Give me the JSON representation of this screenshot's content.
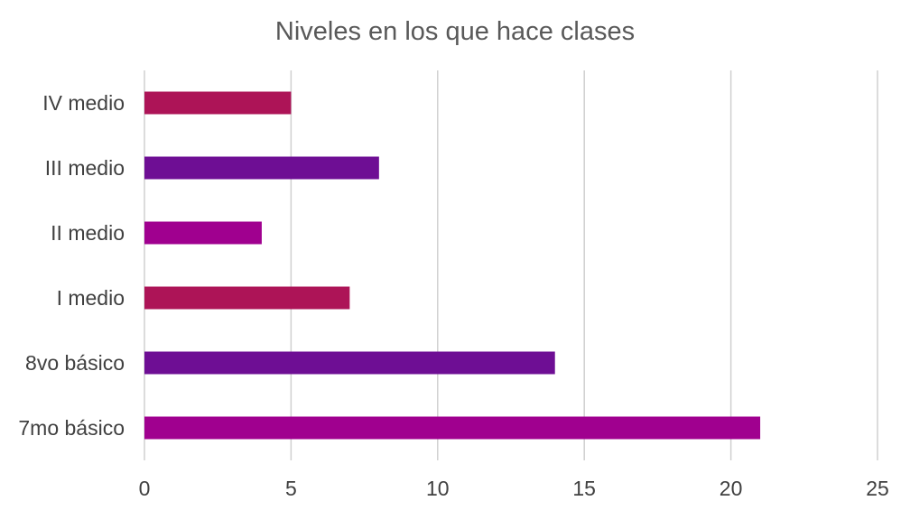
{
  "chart_data": {
    "type": "bar",
    "orientation": "horizontal",
    "title": "Niveles en los que hace clases",
    "xlabel": "",
    "ylabel": "",
    "categories": [
      "7mo básico",
      "8vo básico",
      "I medio",
      "II medio",
      "III medio",
      "IV medio"
    ],
    "values": [
      21,
      14,
      7,
      4,
      8,
      5
    ],
    "bar_colors": [
      "#a0008f",
      "#6e0e94",
      "#ad1457",
      "#a0008f",
      "#6e0e94",
      "#ad1457"
    ],
    "xlim": [
      0,
      25
    ],
    "x_ticks": [
      0,
      5,
      10,
      15,
      20,
      25
    ],
    "grid": true,
    "legend": "none"
  }
}
